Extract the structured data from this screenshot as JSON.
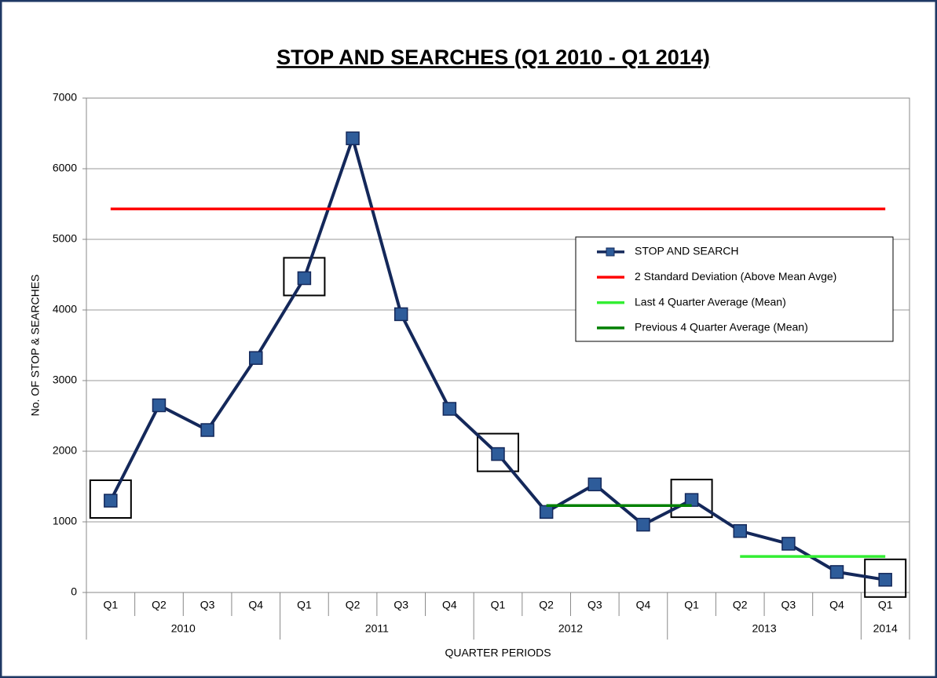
{
  "chart_data": {
    "type": "line",
    "title": "STOP AND SEARCHES (Q1 2010 - Q1 2014)",
    "y_label": "No. OF STOP & SEARCHES",
    "x_label": "QUARTER PERIODS",
    "categories": [
      "Q1",
      "Q2",
      "Q3",
      "Q4",
      "Q1",
      "Q2",
      "Q3",
      "Q4",
      "Q1",
      "Q2",
      "Q3",
      "Q4",
      "Q1",
      "Q2",
      "Q3",
      "Q4",
      "Q1"
    ],
    "x_groups": [
      "2010",
      null,
      null,
      null,
      "2011",
      null,
      null,
      null,
      "2012",
      null,
      null,
      null,
      "2013",
      null,
      null,
      null,
      "2014"
    ],
    "series": [
      {
        "name": "STOP AND SEARCH",
        "color": "#14285a",
        "marker_color": "#2e5c9a",
        "markers": true,
        "values": [
          1300,
          2650,
          2300,
          3320,
          4450,
          6430,
          3940,
          2600,
          1960,
          1140,
          1530,
          960,
          1310,
          870,
          690,
          290,
          180
        ]
      },
      {
        "name": "2 Standard Deviation (Above Mean Avge)",
        "color": "#ff0000",
        "markers": false,
        "values": [
          5430,
          5430,
          5430,
          5430,
          5430,
          5430,
          5430,
          5430,
          5430,
          5430,
          5430,
          5430,
          5430,
          5430,
          5430,
          5430,
          5430
        ]
      },
      {
        "name": "Last 4 Quarter Average (Mean)",
        "color": "#33ee33",
        "markers": false,
        "values": [
          null,
          null,
          null,
          null,
          null,
          null,
          null,
          null,
          null,
          null,
          null,
          null,
          null,
          510,
          510,
          510,
          510
        ]
      },
      {
        "name": "Previous 4 Quarter Average (Mean)",
        "color": "#008000",
        "markers": false,
        "values": [
          null,
          null,
          null,
          null,
          null,
          null,
          null,
          null,
          null,
          1230,
          1230,
          1230,
          1230,
          null,
          null,
          null,
          null
        ]
      }
    ],
    "ylim": [
      0,
      7000
    ],
    "yticks": [
      0,
      1000,
      2000,
      3000,
      4000,
      5000,
      6000,
      7000
    ],
    "grid": true,
    "legend": "right"
  }
}
